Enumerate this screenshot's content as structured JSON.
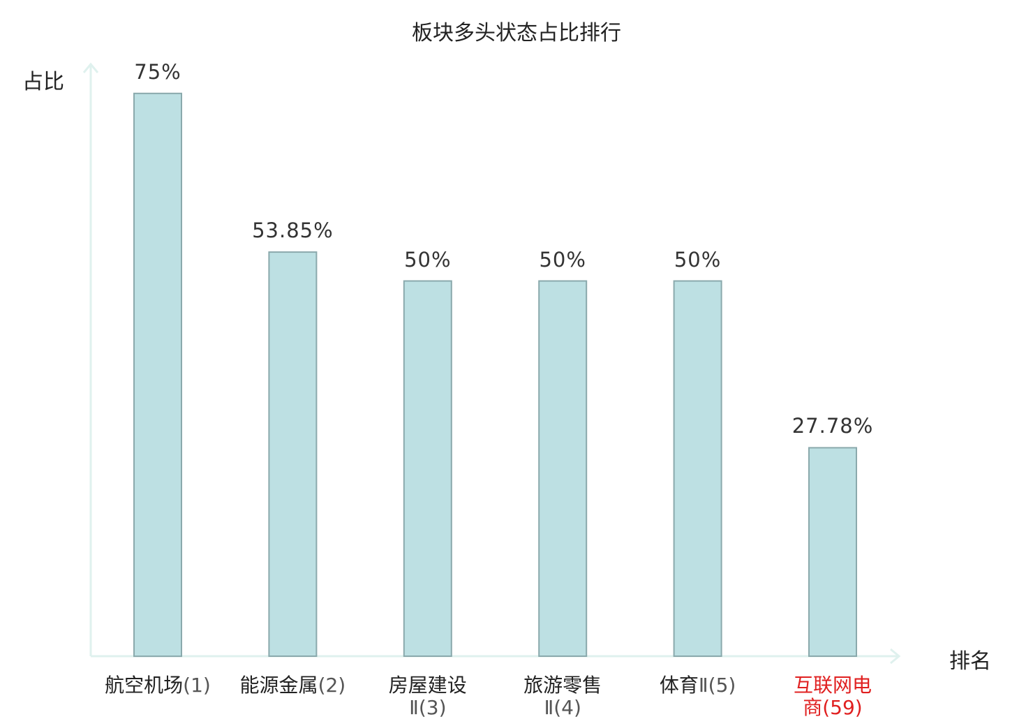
{
  "chart_data": {
    "type": "bar",
    "title": "板块多头状态占比排行",
    "ylabel": "占比",
    "xlabel": "排名",
    "categories": [
      {
        "name": "航空机场",
        "rank": "(1)"
      },
      {
        "name": "能源金属",
        "rank": "(2)"
      },
      {
        "name": "房屋建设",
        "rank": "Ⅱ(3)"
      },
      {
        "name": "旅游零售",
        "rank": "Ⅱ(4)"
      },
      {
        "name": "体育",
        "rank": "Ⅱ(5)"
      },
      {
        "name": "互联网电",
        "rank": "商(59)",
        "highlight": true
      }
    ],
    "values": [
      75,
      53.85,
      50,
      50,
      50,
      27.78
    ],
    "value_labels": [
      "75%",
      "53.85%",
      "50%",
      "50%",
      "50%",
      "27.78%"
    ],
    "ylim": [
      0,
      80
    ],
    "grid": false,
    "colors": {
      "bar_fill": "#bde0e3",
      "bar_stroke": "#8aa9ac",
      "axis": "#dff1ee",
      "highlight_text": "#e02020"
    }
  }
}
